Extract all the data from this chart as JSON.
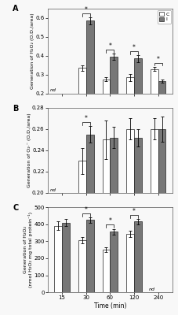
{
  "time_labels": [
    "15",
    "30",
    "60",
    "120",
    "240"
  ],
  "panel_A": {
    "title": "A",
    "ylabel": "Generation of H₂O₂ (O.D./area)",
    "ylim": [
      0.2,
      0.65
    ],
    "yticks": [
      0.2,
      0.3,
      0.4,
      0.5,
      0.6
    ],
    "C_values": [
      null,
      0.335,
      0.275,
      0.285,
      0.33
    ],
    "I_values": [
      null,
      0.585,
      0.395,
      0.385,
      0.265
    ],
    "C_errors": [
      null,
      0.015,
      0.01,
      0.02,
      0.012
    ],
    "I_errors": [
      null,
      0.018,
      0.015,
      0.018,
      0.008
    ],
    "sig": [
      false,
      true,
      true,
      true,
      true
    ],
    "nd_label": "nd"
  },
  "panel_B": {
    "title": "B",
    "ylabel": "Generation of O₂·⁻ (O.D./area)",
    "ylim": [
      0.2,
      0.28
    ],
    "yticks": [
      0.2,
      0.22,
      0.24,
      0.26,
      0.28
    ],
    "C_values": [
      null,
      0.23,
      0.25,
      0.26,
      0.26
    ],
    "I_values": [
      null,
      0.255,
      0.252,
      0.252,
      0.26
    ],
    "C_errors": [
      null,
      0.012,
      0.018,
      0.01,
      0.01
    ],
    "I_errors": [
      null,
      0.008,
      0.01,
      0.008,
      0.012
    ],
    "sig": [
      false,
      true,
      false,
      false,
      false
    ],
    "nd_label": "nd"
  },
  "panel_C": {
    "title": "C",
    "ylabel": "Generation of H₂O₂\n(nmol H₂O₂ mg total protein⁻¹)",
    "ylim": [
      0,
      500
    ],
    "yticks": [
      0,
      100,
      200,
      300,
      400,
      500
    ],
    "C_values": [
      390,
      305,
      250,
      345,
      null
    ],
    "I_values": [
      410,
      425,
      355,
      415,
      null
    ],
    "C_errors": [
      25,
      18,
      15,
      18,
      null
    ],
    "I_errors": [
      22,
      15,
      18,
      15,
      null
    ],
    "sig": [
      false,
      true,
      true,
      true,
      false
    ],
    "nd_label": "nd"
  },
  "colors": {
    "C": "#ffffff",
    "I": "#777777",
    "edge": "#222222"
  },
  "bar_width": 0.32,
  "x_positions": [
    0,
    1,
    2,
    3,
    4
  ],
  "xlabel": "Time (min)",
  "background": "#f8f8f8"
}
